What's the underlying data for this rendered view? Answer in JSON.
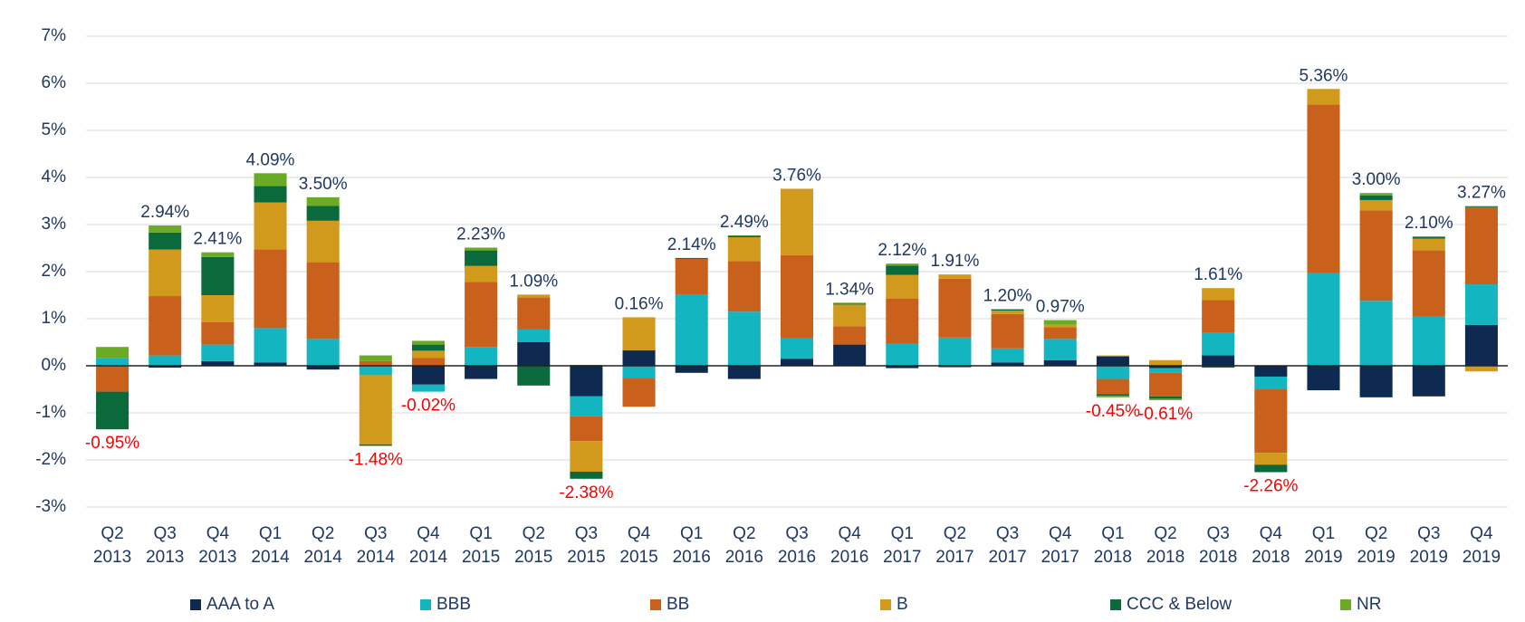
{
  "chart_data": {
    "type": "stacked_bar",
    "categories": [
      [
        "Q2",
        "2013"
      ],
      [
        "Q3",
        "2013"
      ],
      [
        "Q4",
        "2013"
      ],
      [
        "Q1",
        "2014"
      ],
      [
        "Q2",
        "2014"
      ],
      [
        "Q3",
        "2014"
      ],
      [
        "Q4",
        "2014"
      ],
      [
        "Q1",
        "2015"
      ],
      [
        "Q2",
        "2015"
      ],
      [
        "Q3",
        "2015"
      ],
      [
        "Q4",
        "2015"
      ],
      [
        "Q1",
        "2016"
      ],
      [
        "Q2",
        "2016"
      ],
      [
        "Q3",
        "2016"
      ],
      [
        "Q4",
        "2016"
      ],
      [
        "Q1",
        "2017"
      ],
      [
        "Q2",
        "2017"
      ],
      [
        "Q3",
        "2017"
      ],
      [
        "Q4",
        "2017"
      ],
      [
        "Q1",
        "2018"
      ],
      [
        "Q2",
        "2018"
      ],
      [
        "Q3",
        "2018"
      ],
      [
        "Q4",
        "2018"
      ],
      [
        "Q1",
        "2019"
      ],
      [
        "Q2",
        "2019"
      ],
      [
        "Q3",
        "2019"
      ],
      [
        "Q4",
        "2019"
      ]
    ],
    "series": [
      {
        "name": "AAA to A",
        "color": "#0e2a50",
        "values": [
          0,
          -0.04,
          0.1,
          0.07,
          -0.08,
          0,
          -0.4,
          -0.28,
          0.5,
          -0.65,
          0.33,
          -0.15,
          -0.28,
          0.15,
          0.45,
          -0.05,
          -0.03,
          0.07,
          0.12,
          0.2,
          -0.05,
          0.22,
          -0.23,
          -0.52,
          -0.67,
          -0.65,
          0.87
        ]
      },
      {
        "name": "BBB",
        "color": "#12b5c0",
        "values": [
          0.17,
          0.22,
          0.35,
          0.73,
          0.57,
          -0.2,
          -0.15,
          0.4,
          0.27,
          -0.42,
          -0.27,
          1.52,
          1.15,
          0.43,
          0,
          0.47,
          0.6,
          0.3,
          0.45,
          -0.28,
          -0.1,
          0.48,
          -0.27,
          1.97,
          1.38,
          1.05,
          0.86
        ]
      },
      {
        "name": "BB",
        "color": "#c9601c",
        "values": [
          -0.55,
          1.26,
          0.48,
          1.67,
          1.63,
          0.1,
          0.17,
          1.38,
          0.68,
          -0.53,
          -0.6,
          0.75,
          1.07,
          1.77,
          0.39,
          0.96,
          1.25,
          0.73,
          0.25,
          -0.32,
          -0.5,
          0.7,
          -1.35,
          3.58,
          1.92,
          1.4,
          1.64
        ]
      },
      {
        "name": "B",
        "color": "#d19a1c",
        "values": [
          0,
          0.99,
          0.57,
          1.0,
          0.88,
          -1.47,
          0.15,
          0.34,
          0.05,
          -0.65,
          0.7,
          0,
          0.51,
          1.41,
          0.46,
          0.5,
          0.09,
          0.07,
          0.05,
          0.02,
          0.12,
          0.25,
          -0.25,
          0.33,
          0.22,
          0.25,
          -0.12
        ]
      },
      {
        "name": "CCC & Below",
        "color": "#0b6a3c",
        "values": [
          -0.8,
          0.36,
          0.81,
          0.35,
          0.32,
          -0.03,
          0.13,
          0.33,
          -0.42,
          -0.15,
          0,
          0.02,
          0.03,
          0,
          0.02,
          0.2,
          0,
          0.03,
          0,
          -0.04,
          -0.05,
          -0.04,
          -0.16,
          0,
          0.1,
          0.03,
          0.02
        ]
      },
      {
        "name": "NR",
        "color": "#6aaa24",
        "values": [
          0.23,
          0.15,
          0.1,
          0.27,
          0.18,
          0.12,
          0.08,
          0.06,
          0.01,
          0.02,
          0,
          0,
          0.01,
          0,
          0.02,
          0.04,
          0,
          0,
          0.1,
          -0.03,
          -0.03,
          0,
          0,
          0,
          0.05,
          0.02,
          0
        ]
      }
    ],
    "totals": [
      -0.95,
      2.94,
      2.41,
      4.09,
      3.5,
      -1.48,
      -0.02,
      2.23,
      1.09,
      -2.38,
      0.16,
      2.14,
      2.49,
      3.76,
      1.34,
      2.12,
      1.91,
      1.2,
      0.97,
      -0.45,
      -0.61,
      1.61,
      -2.26,
      5.36,
      3.0,
      2.1,
      3.27
    ],
    "total_labels": [
      "-0.95%",
      "2.94%",
      "2.41%",
      "4.09%",
      "3.50%",
      "-1.48%",
      "-0.02%",
      "2.23%",
      "1.09%",
      "-2.38%",
      "0.16%",
      "2.14%",
      "2.49%",
      "3.76%",
      "1.34%",
      "2.12%",
      "1.91%",
      "1.20%",
      "0.97%",
      "-0.45%",
      "-0.61%",
      "1.61%",
      "-2.26%",
      "5.36%",
      "3.00%",
      "2.10%",
      "3.27%"
    ],
    "total_label_colors": {
      "positive": "#1f3864",
      "negative": "#ff0000"
    },
    "ylim": [
      -3,
      7
    ],
    "yticks": [
      {
        "value": -3,
        "label": "-3%"
      },
      {
        "value": -2,
        "label": "-2%"
      },
      {
        "value": -1,
        "label": "-1%"
      },
      {
        "value": 0,
        "label": "0%"
      },
      {
        "value": 1,
        "label": "1%"
      },
      {
        "value": 2,
        "label": "2%"
      },
      {
        "value": 3,
        "label": "3%"
      },
      {
        "value": 4,
        "label": "4%"
      },
      {
        "value": 5,
        "label": "5%"
      },
      {
        "value": 6,
        "label": "6%"
      },
      {
        "value": 7,
        "label": "7%"
      }
    ],
    "grid": true,
    "legend": "bottom"
  }
}
